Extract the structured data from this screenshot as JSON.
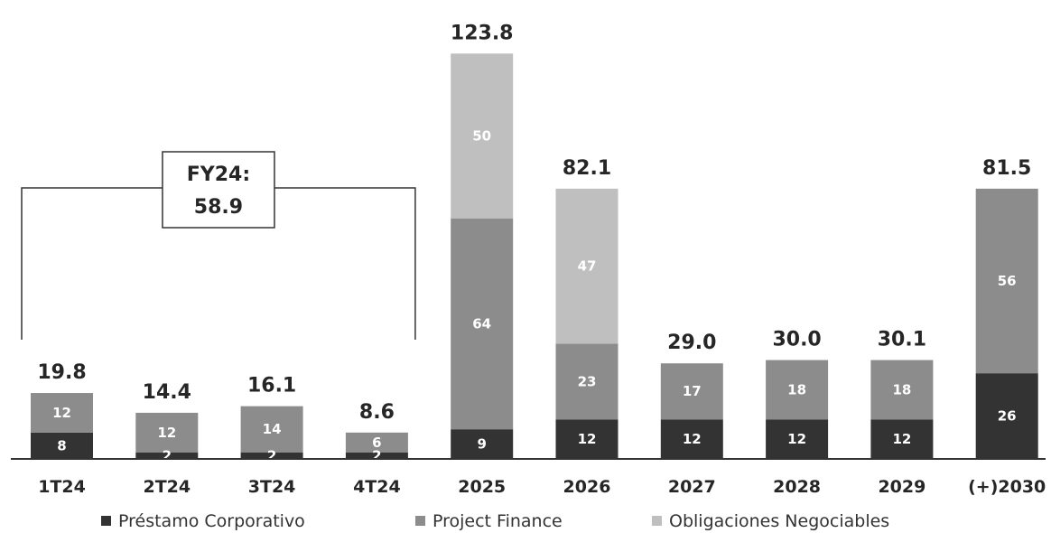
{
  "chart_data": {
    "type": "bar",
    "stacked": true,
    "categories": [
      "1T24",
      "2T24",
      "3T24",
      "4T24",
      "2025",
      "2026",
      "2027",
      "2028",
      "2029",
      "(+)2030"
    ],
    "totals": [
      "19.8",
      "14.4",
      "16.1",
      "8.6",
      "123.8",
      "82.1",
      "29.0",
      "30.0",
      "30.1",
      "81.5"
    ],
    "series": [
      {
        "name": "Préstamo Corporativo",
        "color": "#333333",
        "values": [
          8,
          2,
          2,
          2,
          9,
          12,
          12,
          12,
          12,
          26
        ]
      },
      {
        "name": "Project Finance",
        "color": "#8c8c8c",
        "values": [
          12,
          12,
          14,
          6,
          64,
          23,
          17,
          18,
          18,
          56
        ]
      },
      {
        "name": "Obligaciones Negociables",
        "color": "#bfbfbf",
        "values": [
          0,
          0,
          0,
          0,
          50,
          47,
          0,
          0,
          0,
          0
        ]
      }
    ],
    "ylim": [
      0,
      125
    ],
    "grid": false,
    "legend_position": "bottom",
    "annotation": {
      "line1": "FY24:",
      "line2": "58.9"
    }
  }
}
